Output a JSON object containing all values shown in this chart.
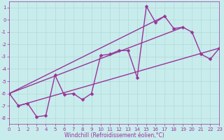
{
  "xlabel": "Windchill (Refroidissement éolien,°C)",
  "bg_color": "#c8ecec",
  "grid_color": "#b0d8d8",
  "line_color": "#993399",
  "x_data": [
    0,
    1,
    2,
    3,
    4,
    5,
    6,
    7,
    8,
    9,
    10,
    11,
    12,
    13,
    14,
    15,
    16,
    17,
    18,
    19,
    20,
    21,
    22,
    23
  ],
  "y_data": [
    -6.0,
    -7.0,
    -6.8,
    -7.9,
    -7.8,
    -4.5,
    -6.1,
    -6.0,
    -6.5,
    -6.0,
    -2.9,
    -2.8,
    -2.5,
    -2.5,
    -4.7,
    1.1,
    -0.2,
    0.3,
    -0.7,
    -0.6,
    -1.0,
    -2.8,
    -3.2,
    -2.3
  ],
  "straight_lines": [
    {
      "x": [
        0,
        19
      ],
      "y": [
        -6.0,
        -0.6
      ]
    },
    {
      "x": [
        0,
        17
      ],
      "y": [
        -6.0,
        0.3
      ]
    },
    {
      "x": [
        1,
        23
      ],
      "y": [
        -7.0,
        -2.3
      ]
    }
  ],
  "xlim": [
    0,
    23
  ],
  "ylim": [
    -8.5,
    1.5
  ],
  "yticks": [
    1,
    0,
    -1,
    -2,
    -3,
    -4,
    -5,
    -6,
    -7,
    -8
  ],
  "xticks": [
    0,
    1,
    2,
    3,
    4,
    5,
    6,
    7,
    8,
    9,
    10,
    11,
    12,
    13,
    14,
    15,
    16,
    17,
    18,
    19,
    20,
    21,
    22,
    23
  ],
  "linewidth": 1.0,
  "markersize": 2.5,
  "tick_fontsize": 5.0,
  "xlabel_fontsize": 5.5
}
